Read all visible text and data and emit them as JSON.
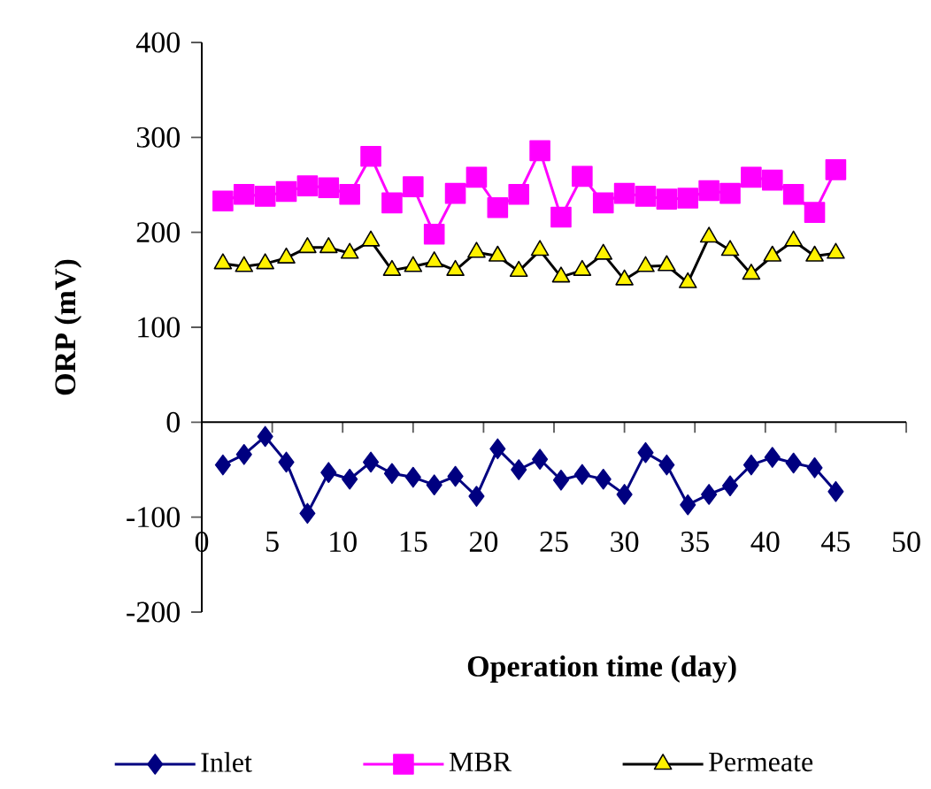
{
  "chart_data": {
    "type": "line",
    "xlabel": "Operation time (day)",
    "ylabel": "ORP (mV)",
    "xlim": [
      0,
      50
    ],
    "xticks": [
      0,
      5,
      10,
      15,
      20,
      25,
      30,
      35,
      40,
      45,
      50
    ],
    "ylim": [
      -200,
      400
    ],
    "yticks": [
      -200,
      -100,
      0,
      100,
      200,
      300,
      400
    ],
    "legend": "bottom",
    "x": [
      1.5,
      3,
      4.5,
      6,
      7.5,
      9,
      10.5,
      12,
      13.5,
      15,
      16.5,
      18,
      19.5,
      21,
      22.5,
      24,
      25.5,
      27,
      28.5,
      30,
      31.5,
      33,
      34.5,
      36,
      37.5,
      39,
      40.5,
      42,
      43.5,
      45
    ],
    "series": [
      {
        "name": "Inlet",
        "color": "#000080",
        "marker": "diamond",
        "values": [
          -45,
          -34,
          -15,
          -42,
          -96,
          -53,
          -60,
          -42,
          -54,
          -58,
          -66,
          -57,
          -78,
          -28,
          -50,
          -39,
          -61,
          -55,
          -60,
          -76,
          -32,
          -45,
          -87,
          -76,
          -67,
          -45,
          -37,
          -43,
          -48,
          -73
        ]
      },
      {
        "name": "MBR",
        "color": "#ff00ff",
        "marker": "square",
        "values": [
          233,
          240,
          238,
          243,
          249,
          247,
          240,
          280,
          231,
          248,
          198,
          241,
          258,
          226,
          240,
          286,
          216,
          259,
          231,
          241,
          238,
          235,
          236,
          244,
          241,
          258,
          255,
          240,
          221,
          266
        ]
      },
      {
        "name": "Permeate",
        "color": "#000000",
        "marker": "triangle",
        "values": [
          167,
          164,
          167,
          173,
          184,
          184,
          178,
          191,
          160,
          164,
          169,
          160,
          179,
          175,
          159,
          181,
          153,
          160,
          177,
          150,
          164,
          165,
          147,
          195,
          181,
          156,
          175,
          191,
          175,
          178
        ]
      }
    ]
  }
}
